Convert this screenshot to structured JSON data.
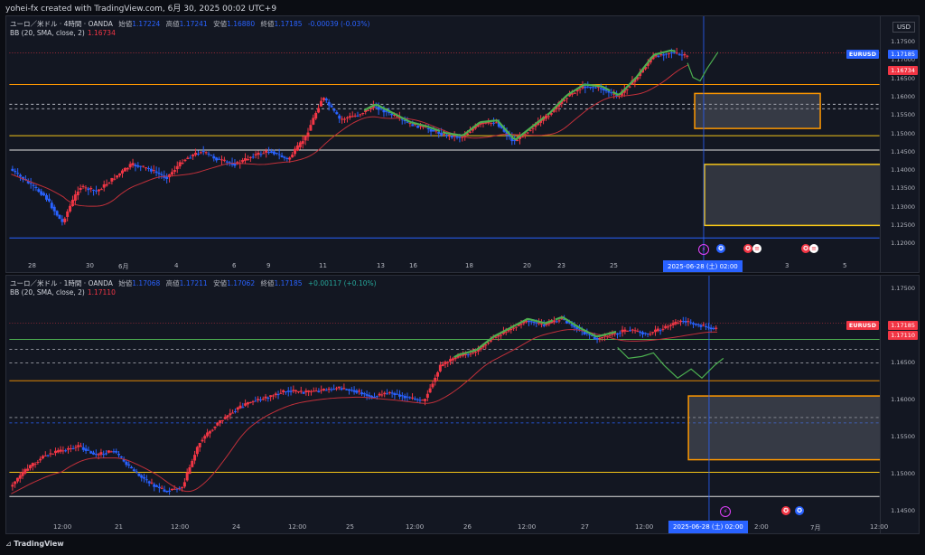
{
  "header": {
    "caption": "yohei-fx created with TradingView.com, 6月 30, 2025 00:02 UTC+9"
  },
  "pane1": {
    "symbol": "ユーロ／米ドル · 4時間 · OANDA",
    "open_label": "始値",
    "open": "1.17224",
    "high_label": "高値",
    "high": "1.17241",
    "low_label": "安値",
    "low": "1.16880",
    "close_label": "終値",
    "close": "1.17185",
    "change": "-0.00039 (-0.03%)",
    "bb_label": "BB (20, SMA, close, 2)",
    "bb_value": "1.16734",
    "currency": "USD",
    "price_ticks": [
      "1.17500",
      "1.17000",
      "1.16500",
      "1.16000",
      "1.15500",
      "1.15000",
      "1.14500",
      "1.14000",
      "1.13500",
      "1.13000",
      "1.12500",
      "1.12000"
    ],
    "symbol_tag": "EURUSD",
    "price_tag": "1.17185",
    "bb_tag": "1.16734",
    "x_labels": [
      "28",
      "30",
      "6月",
      "4",
      "6",
      "9",
      "11",
      "13",
      "16",
      "18",
      "20",
      "23",
      "25",
      "3",
      "5"
    ],
    "cursor_date": "2025-06-28 (土)  02:00"
  },
  "pane2": {
    "symbol": "ユーロ／米ドル · 1時間 · OANDA",
    "open_label": "始値",
    "open": "1.17068",
    "high_label": "高値",
    "high": "1.17211",
    "low_label": "安値",
    "low": "1.17062",
    "close_label": "終値",
    "close": "1.17185",
    "change": "+0.00117 (+0.10%)",
    "bb_label": "BB (20, SMA, close, 2)",
    "bb_value": "1.17110",
    "price_ticks": [
      "1.17500",
      "1.17000",
      "1.16500",
      "1.16000",
      "1.15500",
      "1.15000",
      "1.14500"
    ],
    "symbol_tag": "EURUSD",
    "price_tag": "1.17185",
    "bb_tag": "1.17110",
    "x_labels": [
      "12:00",
      "21",
      "12:00",
      "24",
      "12:00",
      "25",
      "12:00",
      "26",
      "12:00",
      "27",
      "12:00",
      "2:00",
      "7月",
      "12:00"
    ],
    "cursor_date": "2025-06-28 (土)  02:00"
  },
  "footer": {
    "brand": "TradingView"
  },
  "colors": {
    "up": "#f23645",
    "down": "#2962ff",
    "orange": "#ff9800",
    "yellow": "#f5c518",
    "green": "#4caf50",
    "bb": "#c2303a"
  }
}
